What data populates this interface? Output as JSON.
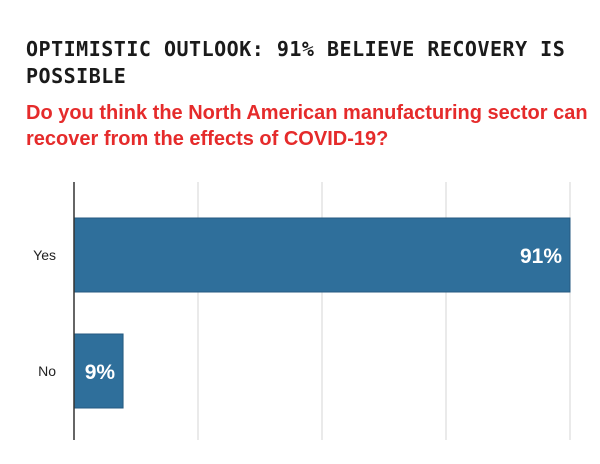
{
  "title": "OPTIMISTIC OUTLOOK: 91% BELIEVE RECOVERY IS POSSIBLE",
  "subtitle": "Do you think the North American manufacturing sector can recover from the effects of COVID-19?",
  "colors": {
    "bar": "#2f6f9b",
    "bar_edge": "#245a80",
    "grid": "#d6d6d6",
    "axis": "#333333",
    "title": "#1a1a1a",
    "subtitle": "#e52b2b",
    "data_label": "#ffffff",
    "category_label": "#222222"
  },
  "chart_data": {
    "type": "bar",
    "orientation": "horizontal",
    "categories": [
      "Yes",
      "No"
    ],
    "values": [
      91,
      9
    ],
    "data_labels": [
      "91%",
      "9%"
    ],
    "xlim": [
      0,
      91
    ],
    "grid": true,
    "gridline_values": [
      0,
      22.75,
      45.5,
      68.25,
      91
    ],
    "legend": "none"
  }
}
